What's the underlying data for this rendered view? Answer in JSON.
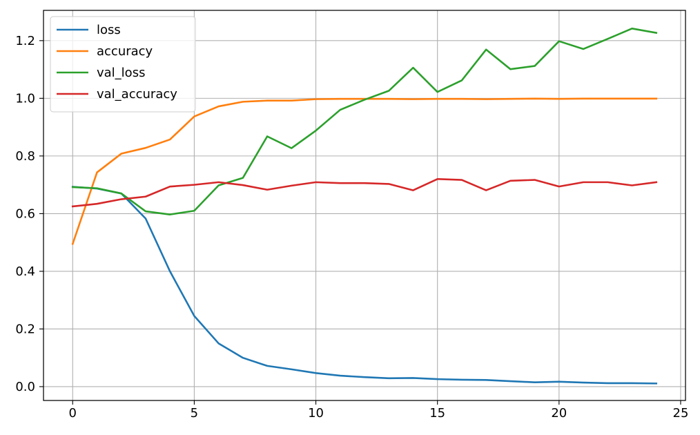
{
  "chart_data": {
    "type": "line",
    "title": "",
    "xlabel": "",
    "ylabel": "",
    "xlim": [
      -1.2,
      25.2
    ],
    "ylim": [
      -0.048,
      1.305
    ],
    "grid": true,
    "legend_position": "top-left",
    "x_ticks": [
      0,
      5,
      10,
      15,
      20,
      25
    ],
    "y_ticks": [
      0.0,
      0.2,
      0.4,
      0.6,
      0.8,
      1.0,
      1.2
    ],
    "x_tick_labels": [
      "0",
      "5",
      "10",
      "15",
      "20",
      "25"
    ],
    "y_tick_labels": [
      "0.0",
      "0.2",
      "0.4",
      "0.6",
      "0.8",
      "1.0",
      "1.2"
    ],
    "x": [
      0,
      1,
      2,
      3,
      4,
      5,
      6,
      7,
      8,
      9,
      10,
      11,
      12,
      13,
      14,
      15,
      16,
      17,
      18,
      19,
      20,
      21,
      22,
      23,
      24
    ],
    "series": [
      {
        "name": "loss",
        "color": "#1f77b4",
        "values": [
          0.693,
          0.687,
          0.67,
          0.583,
          0.4,
          0.245,
          0.15,
          0.1,
          0.072,
          0.06,
          0.047,
          0.038,
          0.033,
          0.029,
          0.03,
          0.026,
          0.024,
          0.023,
          0.019,
          0.015,
          0.017,
          0.014,
          0.012,
          0.012,
          0.011
        ]
      },
      {
        "name": "accuracy",
        "color": "#ff7f0e",
        "values": [
          0.495,
          0.743,
          0.808,
          0.828,
          0.857,
          0.937,
          0.972,
          0.988,
          0.992,
          0.992,
          0.997,
          0.998,
          0.998,
          0.998,
          0.997,
          0.998,
          0.998,
          0.997,
          0.998,
          0.999,
          0.998,
          0.999,
          0.999,
          0.999,
          0.999
        ]
      },
      {
        "name": "val_loss",
        "color": "#2ca02c",
        "values": [
          0.692,
          0.688,
          0.67,
          0.608,
          0.597,
          0.61,
          0.698,
          0.724,
          0.868,
          0.827,
          0.888,
          0.96,
          0.995,
          1.026,
          1.106,
          1.022,
          1.062,
          1.169,
          1.101,
          1.112,
          1.198,
          1.171,
          1.206,
          1.242,
          1.227
        ]
      },
      {
        "name": "val_accuracy",
        "color": "#d62728",
        "values": [
          0.625,
          0.634,
          0.65,
          0.659,
          0.694,
          0.7,
          0.709,
          0.699,
          0.683,
          0.697,
          0.709,
          0.706,
          0.706,
          0.703,
          0.681,
          0.72,
          0.717,
          0.681,
          0.714,
          0.717,
          0.694,
          0.709,
          0.709,
          0.698,
          0.709
        ]
      }
    ]
  }
}
